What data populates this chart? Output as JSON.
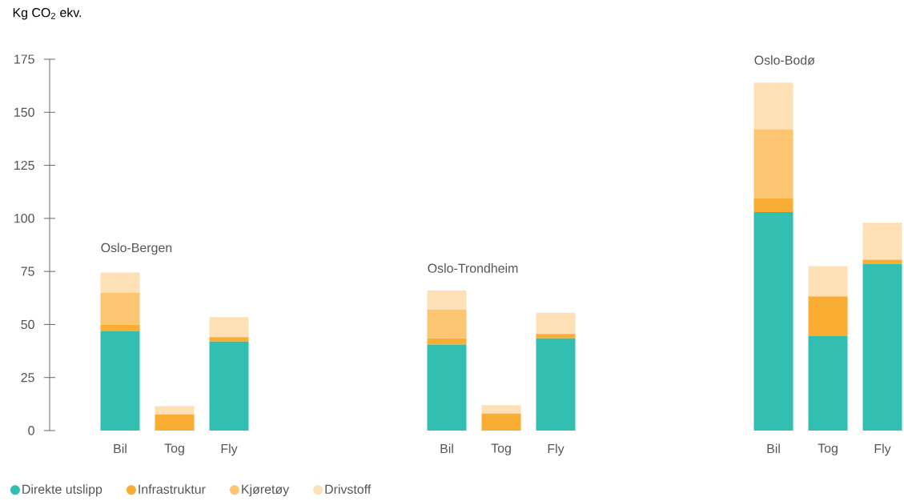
{
  "chart_data": {
    "type": "bar",
    "stacked": true,
    "ylabel": "Kg CO$_{2}$ ekv.",
    "categories": [
      "Bil",
      "Tog",
      "Fly",
      null,
      null,
      null,
      "Bil",
      "Tog",
      "Fly",
      null,
      null,
      null,
      "Bil",
      "Tog",
      "Fly"
    ],
    "series": [
      {
        "name": "Direkte utslipp",
        "color": "#32bfb2",
        "values": [
          47,
          0,
          42,
          null,
          null,
          null,
          40.5,
          0,
          43.5,
          null,
          null,
          null,
          103,
          44.5,
          78.5
        ]
      },
      {
        "name": "Infrastruktur",
        "color": "#f9ad33",
        "values": [
          3,
          7.5,
          2,
          null,
          null,
          null,
          3,
          8,
          2,
          null,
          null,
          null,
          6.5,
          18.5,
          2
        ]
      },
      {
        "name": "Kjøretøy",
        "color": "#fcc571",
        "values": [
          15,
          0,
          0,
          null,
          null,
          null,
          13.5,
          0,
          0,
          null,
          null,
          null,
          32.5,
          0.5,
          0
        ]
      },
      {
        "name": "Drivstoff",
        "color": "#fde0b6",
        "values": [
          9.5,
          4,
          9.5,
          null,
          null,
          null,
          9,
          4,
          10,
          null,
          null,
          null,
          22,
          14,
          17.5
        ]
      }
    ],
    "annotations": [
      "Oslo-Bergen",
      "Oslo-Trondheim",
      "Oslo-Bodø"
    ],
    "ylim": [
      0,
      175
    ],
    "yticks": [
      0,
      25,
      50,
      75,
      100,
      125,
      150,
      175
    ],
    "legend": "bottom"
  }
}
